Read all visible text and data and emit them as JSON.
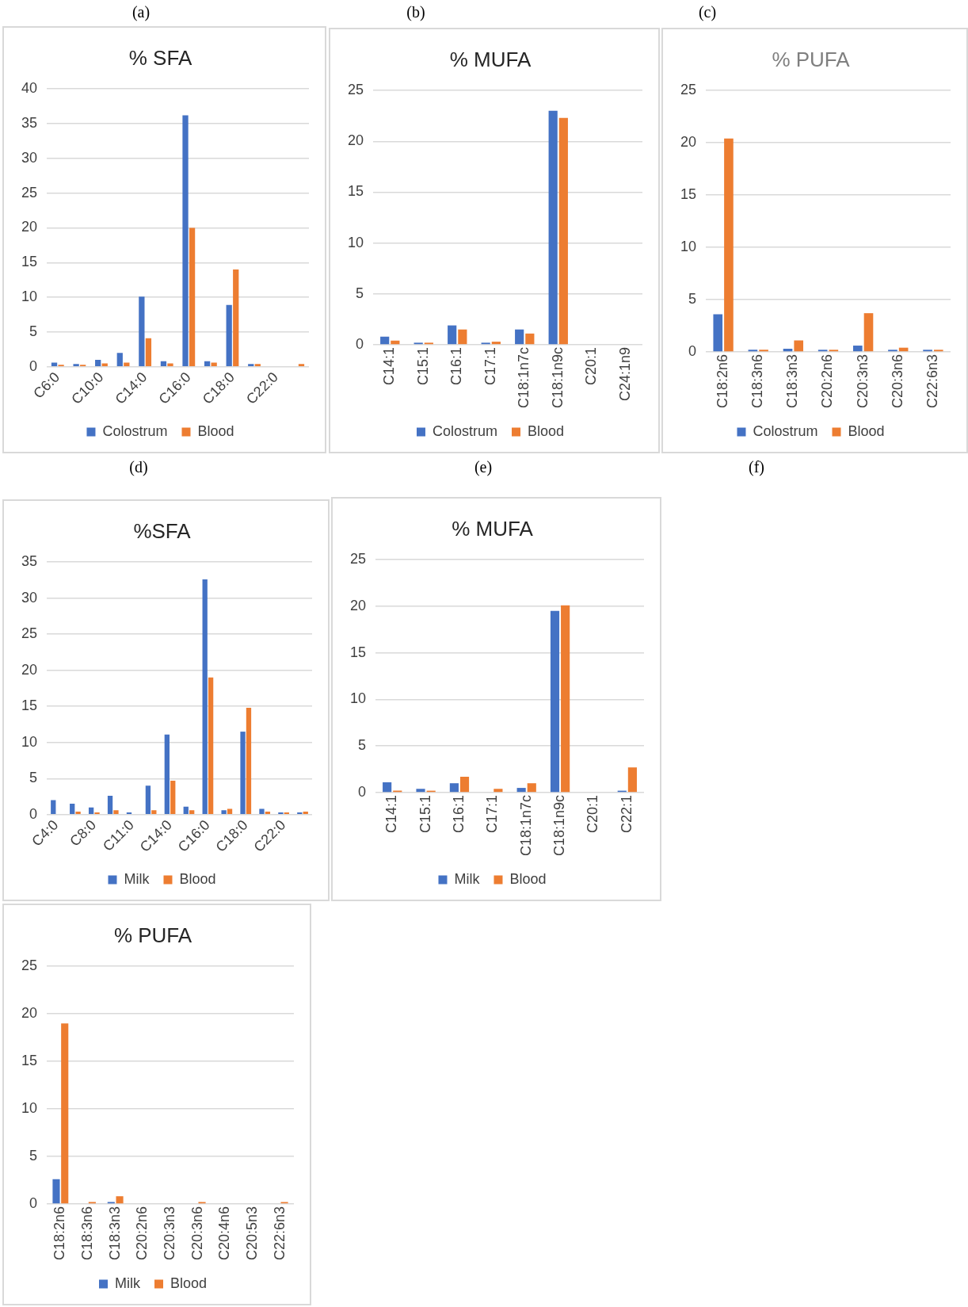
{
  "chart_data": [
    {
      "type": "bar",
      "title": "% SFA",
      "annotations": [
        "(a)"
      ],
      "categories": [
        "C6:0",
        null,
        "C10:0",
        null,
        "C14:0",
        null,
        "C16:0",
        null,
        "C18:0",
        null,
        "C22:0",
        null
      ],
      "series": [
        {
          "name": "Colostrum",
          "color": "#4472c4",
          "values": [
            0.6,
            0.4,
            1.0,
            2.0,
            10.1,
            0.8,
            36.2,
            0.8,
            8.9,
            0.4,
            0,
            0
          ]
        },
        {
          "name": "Blood",
          "color": "#ed7d31",
          "values": [
            0.3,
            0.3,
            0.5,
            0.6,
            4.1,
            0.5,
            20,
            0.6,
            14,
            0.4,
            0,
            0.4
          ]
        }
      ],
      "ylim": [
        0,
        40
      ],
      "yticks": [
        0,
        5,
        10,
        15,
        20,
        25,
        30,
        35,
        40
      ],
      "grid": "y",
      "legend": "bottom"
    },
    {
      "type": "bar",
      "title": "% MUFA",
      "annotations": [
        "(b)"
      ],
      "categories": [
        "C14:1",
        "C15:1",
        "C16:1",
        "C17:1",
        "C18:1n7c",
        "C18:1n9c",
        "C20:1",
        "C24:1n9"
      ],
      "series": [
        {
          "name": "Colostrum",
          "color": "#4472c4",
          "values": [
            0.8,
            0.2,
            1.9,
            0.2,
            1.5,
            23,
            0,
            0
          ]
        },
        {
          "name": "Blood",
          "color": "#ed7d31",
          "values": [
            0.4,
            0.2,
            1.5,
            0.3,
            1.1,
            22.3,
            0,
            0
          ]
        }
      ],
      "ylim": [
        0,
        25
      ],
      "yticks": [
        0,
        5,
        10,
        15,
        20,
        25
      ],
      "grid": "y",
      "legend": "bottom"
    },
    {
      "type": "bar",
      "title": "% PUFA",
      "annotations": [
        "(c)"
      ],
      "categories": [
        "C18:2n6",
        "C18:3n6",
        "C18:3n3",
        "C20:2n6",
        "C20:3n3",
        "C20:3n6",
        "C22:6n3"
      ],
      "series": [
        {
          "name": "Colostrum",
          "color": "#4472c4",
          "values": [
            3.6,
            0.2,
            0.3,
            0.2,
            0.6,
            0.2,
            0.2
          ]
        },
        {
          "name": "Blood",
          "color": "#ed7d31",
          "values": [
            20.4,
            0.2,
            1.1,
            0.2,
            3.7,
            0.4,
            0.2
          ]
        }
      ],
      "ylim": [
        0,
        25
      ],
      "yticks": [
        0,
        5,
        10,
        15,
        20,
        25
      ],
      "grid": "y",
      "legend": "bottom"
    },
    {
      "type": "bar",
      "title": "%SFA",
      "annotations": [
        "(d)"
      ],
      "categories": [
        "C4:0",
        null,
        "C8:0",
        null,
        "C11:0",
        null,
        "C14:0",
        null,
        "C16:0",
        null,
        "C18:0",
        null,
        "C22:0",
        null
      ],
      "series": [
        {
          "name": "Milk",
          "color": "#4472c4",
          "values": [
            2.0,
            1.5,
            1.0,
            2.6,
            0.3,
            4.0,
            11.1,
            1.1,
            32.6,
            0.6,
            11.5,
            0.8,
            0.3,
            0.3
          ]
        },
        {
          "name": "Blood",
          "color": "#ed7d31",
          "values": [
            0,
            0.4,
            0.3,
            0.6,
            0,
            0.6,
            4.7,
            0.6,
            19.0,
            0.8,
            14.8,
            0.4,
            0.3,
            0.4
          ]
        }
      ],
      "ylim": [
        0,
        35
      ],
      "yticks": [
        0,
        5,
        10,
        15,
        20,
        25,
        30,
        35
      ],
      "grid": "y",
      "legend": "bottom"
    },
    {
      "type": "bar",
      "title": "% MUFA",
      "annotations": [
        "(e)"
      ],
      "categories": [
        "C14:1",
        "C15:1",
        "C16:1",
        "C17:1",
        "C18:1n7c",
        "C18:1n9c",
        "C20:1",
        "C22:1"
      ],
      "series": [
        {
          "name": "Milk",
          "color": "#4472c4",
          "values": [
            1.1,
            0.4,
            1.0,
            0,
            0.5,
            19.5,
            0,
            0.2
          ]
        },
        {
          "name": "Blood",
          "color": "#ed7d31",
          "values": [
            0.2,
            0.2,
            1.7,
            0.4,
            1.0,
            20.1,
            0,
            2.7
          ]
        }
      ],
      "ylim": [
        0,
        25
      ],
      "yticks": [
        0,
        5,
        10,
        15,
        20,
        25
      ],
      "grid": "y",
      "legend": "bottom"
    },
    {
      "type": "bar",
      "title": "% PUFA",
      "annotations": [
        "(f)"
      ],
      "categories": [
        "C18:2n6",
        "C18:3n6",
        "C18:3n3",
        "C20:2n6",
        "C20:3n3",
        "C20:3n6",
        "C20:4n6",
        "C20:5n3",
        "C22:6n3"
      ],
      "series": [
        {
          "name": "Milk",
          "color": "#4472c4",
          "values": [
            2.6,
            0,
            0.2,
            0,
            0,
            0,
            0,
            0,
            0
          ]
        },
        {
          "name": "Blood",
          "color": "#ed7d31",
          "values": [
            19.0,
            0.2,
            0.8,
            0,
            0,
            0.2,
            0,
            0,
            0.2
          ]
        }
      ],
      "ylim": [
        0,
        25
      ],
      "yticks": [
        0,
        5,
        10,
        15,
        20,
        25
      ],
      "grid": "y",
      "legend": "bottom"
    }
  ]
}
